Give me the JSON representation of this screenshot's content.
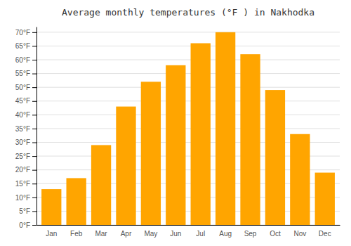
{
  "chart_data": {
    "type": "bar",
    "title": "Average monthly temperatures (°F ) in Nakhodka",
    "categories": [
      "Jan",
      "Feb",
      "Mar",
      "Apr",
      "May",
      "Jun",
      "Jul",
      "Aug",
      "Sep",
      "Oct",
      "Nov",
      "Dec"
    ],
    "values": [
      13,
      17,
      29,
      43,
      52,
      58,
      66,
      70,
      62,
      49,
      33,
      19
    ],
    "color": "#FFA500",
    "ylim": [
      0,
      72
    ],
    "yticks": [
      {
        "value": 0,
        "label": "0°F"
      },
      {
        "value": 5,
        "label": "5°F"
      },
      {
        "value": 10,
        "label": "10°F"
      },
      {
        "value": 15,
        "label": "15°F"
      },
      {
        "value": 20,
        "label": "20°F"
      },
      {
        "value": 25,
        "label": "25°F"
      },
      {
        "value": 30,
        "label": "30°F"
      },
      {
        "value": 35,
        "label": "35°F"
      },
      {
        "value": 40,
        "label": "40°F"
      },
      {
        "value": 45,
        "label": "45°F"
      },
      {
        "value": 50,
        "label": "50°F"
      },
      {
        "value": 55,
        "label": "55°F"
      },
      {
        "value": 60,
        "label": "60°F"
      },
      {
        "value": 65,
        "label": "65°F"
      },
      {
        "value": 70,
        "label": "70°F"
      }
    ],
    "grid": true
  }
}
